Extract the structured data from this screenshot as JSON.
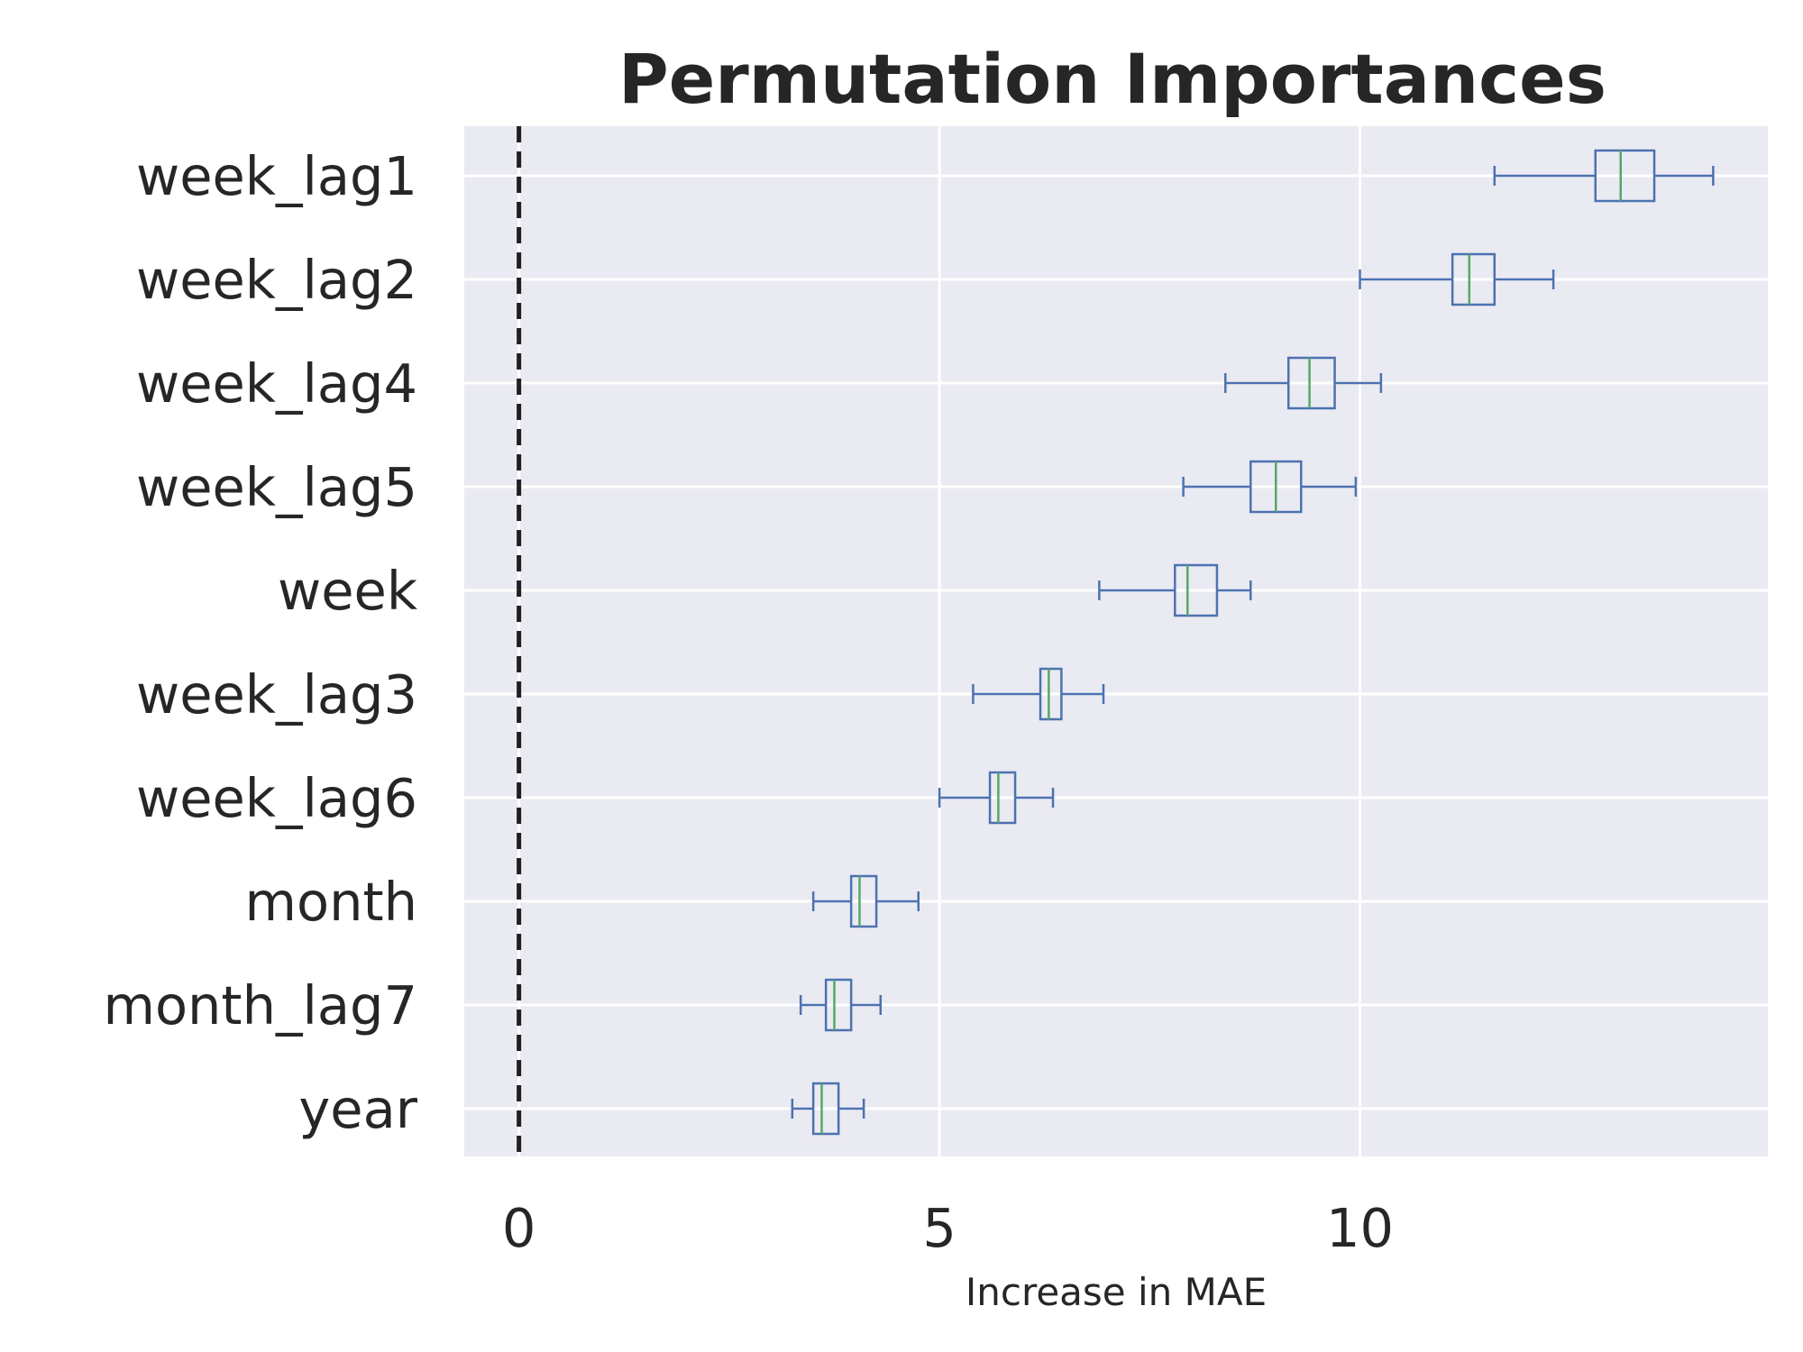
{
  "chart_data": {
    "type": "boxplot",
    "title": "Permutation Importances",
    "xlabel": "Increase in MAE",
    "ylabel": "",
    "xlim": [
      -0.65,
      14.85
    ],
    "xticks": [
      0,
      5,
      10
    ],
    "xtick_labels": [
      "0",
      "5",
      "10"
    ],
    "reference_line": {
      "x": 0,
      "style": "dashed",
      "color": "#1f1f1f"
    },
    "grid": true,
    "colors": {
      "background": "#eaeaf2",
      "grid": "#ffffff",
      "box": "#4c72b0",
      "median": "#55a868"
    },
    "categories": [
      "week_lag1",
      "week_lag2",
      "week_lag4",
      "week_lag5",
      "week",
      "week_lag3",
      "week_lag6",
      "month",
      "month_lag7",
      "year"
    ],
    "boxes": [
      {
        "label": "week_lag1",
        "whisker_low": 11.6,
        "q1": 12.8,
        "median": 13.1,
        "q3": 13.5,
        "whisker_high": 14.2
      },
      {
        "label": "week_lag2",
        "whisker_low": 10.0,
        "q1": 11.1,
        "median": 11.3,
        "q3": 11.6,
        "whisker_high": 12.3
      },
      {
        "label": "week_lag4",
        "whisker_low": 8.4,
        "q1": 9.15,
        "median": 9.4,
        "q3": 9.7,
        "whisker_high": 10.25
      },
      {
        "label": "week_lag5",
        "whisker_low": 7.9,
        "q1": 8.7,
        "median": 9.0,
        "q3": 9.3,
        "whisker_high": 9.95
      },
      {
        "label": "week",
        "whisker_low": 6.9,
        "q1": 7.8,
        "median": 7.95,
        "q3": 8.3,
        "whisker_high": 8.7
      },
      {
        "label": "week_lag3",
        "whisker_low": 5.4,
        "q1": 6.2,
        "median": 6.3,
        "q3": 6.45,
        "whisker_high": 6.95
      },
      {
        "label": "week_lag6",
        "whisker_low": 5.0,
        "q1": 5.6,
        "median": 5.7,
        "q3": 5.9,
        "whisker_high": 6.35
      },
      {
        "label": "month",
        "whisker_low": 3.5,
        "q1": 3.95,
        "median": 4.05,
        "q3": 4.25,
        "whisker_high": 4.75
      },
      {
        "label": "month_lag7",
        "whisker_low": 3.35,
        "q1": 3.65,
        "median": 3.75,
        "q3": 3.95,
        "whisker_high": 4.3
      },
      {
        "label": "year",
        "whisker_low": 3.25,
        "q1": 3.5,
        "median": 3.6,
        "q3": 3.8,
        "whisker_high": 4.1
      }
    ]
  }
}
